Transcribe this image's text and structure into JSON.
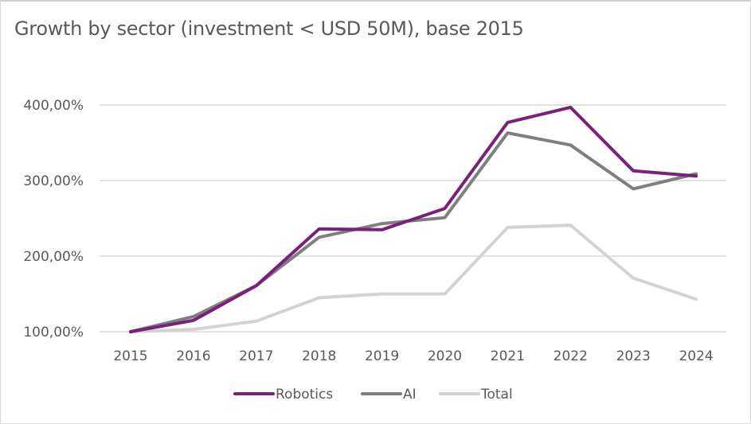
{
  "chart_data": {
    "type": "line",
    "title": "Growth by sector (investment < USD 50M), base 2015",
    "xlabel": "",
    "ylabel": "",
    "x": [
      "2015",
      "2016",
      "2017",
      "2018",
      "2019",
      "2020",
      "2021",
      "2022",
      "2023",
      "2024"
    ],
    "ylim": [
      100,
      400
    ],
    "yticks": [
      100,
      200,
      300,
      400
    ],
    "ytick_labels": [
      "100,00%",
      "200,00%",
      "300,00%",
      "400,00%"
    ],
    "grid": true,
    "legend_position": "bottom",
    "series": [
      {
        "name": "Robotics",
        "color": "#7a1f7a",
        "values": [
          100,
          115,
          161,
          236,
          235,
          263,
          377,
          397,
          313,
          306
        ]
      },
      {
        "name": "AI",
        "color": "#7f7f7f",
        "values": [
          100,
          120,
          161,
          225,
          243,
          251,
          363,
          347,
          289,
          309
        ]
      },
      {
        "name": "Total",
        "color": "#d3d3d3",
        "values": [
          100,
          103,
          114,
          145,
          150,
          150,
          238,
          241,
          171,
          143
        ]
      }
    ]
  }
}
